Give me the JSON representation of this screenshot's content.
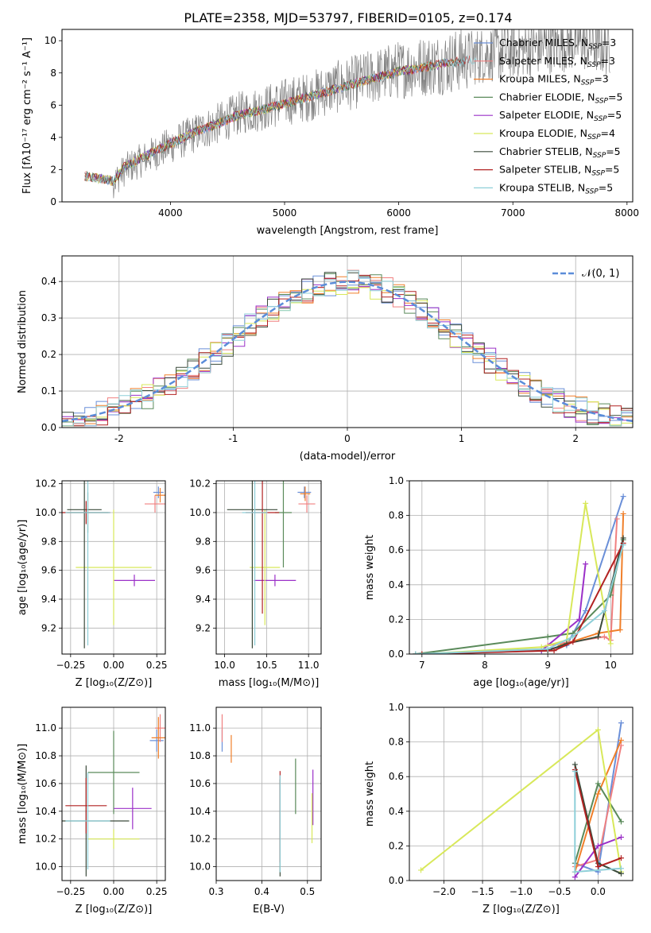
{
  "figure_title": "PLATE=2358, MJD=53797, FIBERID=0105, z=0.174",
  "legend_models": [
    {
      "name": "Chabrier MILES, N",
      "sub": "SSP",
      "val": "=3",
      "color": "#6a8fd8"
    },
    {
      "name": "Salpeter MILES, N",
      "sub": "SSP",
      "val": "=3",
      "color": "#f08080"
    },
    {
      "name": "Kroupa MILES, N",
      "sub": "SSP",
      "val": "=3",
      "color": "#f07f2a"
    },
    {
      "name": "Chabrier ELODIE, N",
      "sub": "SSP",
      "val": "=5",
      "color": "#5a8a5a"
    },
    {
      "name": "Salpeter ELODIE, N",
      "sub": "SSP",
      "val": "=5",
      "color": "#9b30c8"
    },
    {
      "name": "Kroupa ELODIE, N",
      "sub": "SSP",
      "val": "=4",
      "color": "#d8e85a"
    },
    {
      "name": "Chabrier STELIB, N",
      "sub": "SSP",
      "val": "=5",
      "color": "#3a4a3a"
    },
    {
      "name": "Salpeter STELIB, N",
      "sub": "SSP",
      "val": "=5",
      "color": "#b22222"
    },
    {
      "name": "Kroupa STELIB, N",
      "sub": "SSP",
      "val": "=5",
      "color": "#8ecfd8"
    }
  ],
  "chart_data": [
    {
      "id": "spectrum",
      "type": "line",
      "xlabel": "wavelength [Angstrom, rest frame]",
      "ylabel": "Flux [fλ10⁻¹⁷ erg cm⁻² s⁻¹ A⁻¹]",
      "xlim": [
        3050,
        8050
      ],
      "ylim": [
        0,
        10.7
      ],
      "xticks": [
        4000,
        5000,
        6000,
        7000,
        8000
      ],
      "yticks": [
        0,
        2,
        4,
        6,
        8,
        10
      ],
      "data_color": "#808080",
      "data_knots": [
        [
          3250,
          1.6
        ],
        [
          3400,
          1.6
        ],
        [
          3500,
          1.2
        ],
        [
          3600,
          2.0
        ],
        [
          3800,
          2.8
        ],
        [
          4000,
          3.5
        ],
        [
          4200,
          4.2
        ],
        [
          4400,
          4.8
        ],
        [
          4600,
          5.5
        ],
        [
          4800,
          5.8
        ],
        [
          5000,
          6.2
        ],
        [
          5200,
          6.5
        ],
        [
          5400,
          7.0
        ],
        [
          5600,
          7.4
        ],
        [
          5800,
          7.8
        ],
        [
          6000,
          8.2
        ],
        [
          6200,
          8.4
        ],
        [
          6400,
          8.6
        ],
        [
          6600,
          8.9
        ],
        [
          6800,
          9.2
        ],
        [
          7000,
          9.4
        ],
        [
          7200,
          9.6
        ],
        [
          7400,
          9.8
        ],
        [
          7600,
          9.9
        ],
        [
          7800,
          9.6
        ]
      ],
      "model_knots": [
        [
          3250,
          1.6
        ],
        [
          3500,
          1.3
        ],
        [
          3600,
          2.2
        ],
        [
          3800,
          2.9
        ],
        [
          4000,
          3.6
        ],
        [
          4200,
          4.3
        ],
        [
          4400,
          4.8
        ],
        [
          4600,
          5.4
        ],
        [
          4800,
          5.7
        ],
        [
          5000,
          6.1
        ],
        [
          5200,
          6.5
        ],
        [
          5400,
          6.9
        ],
        [
          5600,
          7.3
        ],
        [
          5800,
          7.7
        ],
        [
          6000,
          8.1
        ],
        [
          6200,
          8.3
        ],
        [
          6400,
          8.6
        ],
        [
          6600,
          8.8
        ]
      ]
    },
    {
      "id": "residuals",
      "type": "step-histogram",
      "xlabel": "(data-model)/error",
      "ylabel": "Normed distribution",
      "xlim": [
        -2.5,
        2.5
      ],
      "ylim": [
        0,
        0.47
      ],
      "xticks": [
        -2,
        -1,
        0,
        1,
        2
      ],
      "yticks": [
        0.0,
        0.1,
        0.2,
        0.3,
        0.4
      ],
      "grid": true,
      "bin_width": 0.1,
      "reference_curve": {
        "label": "𝒩(0, 1)",
        "color": "#5b8dd9"
      }
    },
    {
      "id": "age_vs_Z",
      "type": "errorbar",
      "xlabel": "Z [log₁₀(Z/Z⊙)]",
      "ylabel": "age  [log₁₀(age/yr)]",
      "xlim": [
        -0.3,
        0.3
      ],
      "ylim": [
        9.02,
        10.22
      ],
      "xticks": [
        -0.25,
        0.0,
        0.25
      ],
      "ytick_values": [
        9.2,
        9.4,
        9.6,
        9.8,
        10.0,
        10.2
      ],
      "xtick_labels": [
        "−0.25",
        "0.00",
        "0.25"
      ],
      "ytick_labels": [
        "9.2",
        "9.4",
        "9.6",
        "9.8",
        "10.0",
        "10.2"
      ],
      "grid": true,
      "points": [
        {
          "x": 0.26,
          "y": 10.14,
          "xe": 0.03,
          "ye": 0.04,
          "c": 0
        },
        {
          "x": 0.24,
          "y": 10.06,
          "xe": 0.06,
          "ye": 0.06,
          "c": 1
        },
        {
          "x": 0.27,
          "y": 10.12,
          "xe": 0.03,
          "ye": 0.05,
          "c": 2
        },
        {
          "x": -0.15,
          "y": 10.0,
          "xe": 0.12,
          "ye": 0.14,
          "c": 3
        },
        {
          "x": 0.12,
          "y": 9.53,
          "xe": 0.12,
          "ye": 0.04,
          "c": 4
        },
        {
          "x": 0.0,
          "y": 9.62,
          "xe": 0.22,
          "ye": 0.4,
          "c": 5
        },
        {
          "x": -0.17,
          "y": 10.02,
          "xe": 0.1,
          "ye": 0.96,
          "c": 6
        },
        {
          "x": -0.16,
          "y": 10.0,
          "xe": 0.14,
          "ye": 0.08,
          "c": 7
        },
        {
          "x": -0.15,
          "y": 10.0,
          "xe": 0.13,
          "ye": 0.92,
          "c": 8
        }
      ]
    },
    {
      "id": "age_vs_mass",
      "type": "errorbar",
      "xlabel": "mass [log₁₀(M/M⊙)]",
      "ylabel": "",
      "xlim": [
        9.9,
        11.15
      ],
      "ylim": [
        9.02,
        10.22
      ],
      "xticks": [
        10.0,
        10.5,
        11.0
      ],
      "ytick_values": [
        9.2,
        9.4,
        9.6,
        9.8,
        10.0,
        10.2
      ],
      "xtick_labels": [
        "10.0",
        "10.5",
        "11.0"
      ],
      "ytick_labels": [
        "9.2",
        "9.4",
        "9.6",
        "9.8",
        "10.0",
        "10.2"
      ],
      "grid": true,
      "points": [
        {
          "x": 10.95,
          "y": 10.14,
          "xe": 0.08,
          "ye": 0.04,
          "c": 0
        },
        {
          "x": 10.98,
          "y": 10.06,
          "xe": 0.1,
          "ye": 0.06,
          "c": 1
        },
        {
          "x": 10.96,
          "y": 10.13,
          "xe": 0.06,
          "ye": 0.05,
          "c": 2
        },
        {
          "x": 10.7,
          "y": 10.0,
          "xe": 0.1,
          "ye": 0.38,
          "c": 3
        },
        {
          "x": 10.6,
          "y": 9.53,
          "xe": 0.25,
          "ye": 0.04,
          "c": 4
        },
        {
          "x": 10.48,
          "y": 9.62,
          "xe": 0.18,
          "ye": 0.4,
          "c": 5
        },
        {
          "x": 10.33,
          "y": 10.02,
          "xe": 0.3,
          "ye": 0.96,
          "c": 6
        },
        {
          "x": 10.45,
          "y": 10.0,
          "xe": 0.2,
          "ye": 0.7,
          "c": 7
        },
        {
          "x": 10.36,
          "y": 10.0,
          "xe": 0.15,
          "ye": 0.92,
          "c": 8
        }
      ]
    },
    {
      "id": "weight_vs_age",
      "type": "line",
      "xlabel": "age  [log₁₀(age/yr)]",
      "ylabel": "mass weight",
      "xlim": [
        6.8,
        10.35
      ],
      "ylim": [
        0,
        1
      ],
      "xticks": [
        7,
        8,
        9,
        10
      ],
      "yticks": [
        0.0,
        0.2,
        0.4,
        0.6,
        0.8,
        1.0
      ],
      "xtick_labels": [
        "7",
        "8",
        "9",
        "10"
      ],
      "ytick_labels": [
        "0.0",
        "0.2",
        "0.4",
        "0.6",
        "0.8",
        "1.0"
      ],
      "grid": true,
      "series": [
        {
          "c": 0,
          "x": [
            8.9,
            9.3,
            9.6,
            10.2
          ],
          "y": [
            0.02,
            0.05,
            0.25,
            0.91
          ]
        },
        {
          "c": 1,
          "x": [
            9.0,
            9.9,
            10.0,
            10.1
          ],
          "y": [
            0.05,
            0.1,
            0.08,
            0.78
          ]
        },
        {
          "c": 2,
          "x": [
            9.2,
            9.8,
            10.15,
            10.2
          ],
          "y": [
            0.05,
            0.12,
            0.14,
            0.81
          ]
        },
        {
          "c": 3,
          "x": [
            6.9,
            9.0,
            9.4,
            10.0,
            10.2
          ],
          "y": [
            0.0,
            0.1,
            0.12,
            0.34,
            0.66
          ]
        },
        {
          "c": 4,
          "x": [
            7.0,
            8.9,
            9.5,
            9.6
          ],
          "y": [
            0.0,
            0.02,
            0.2,
            0.52
          ]
        },
        {
          "c": 5,
          "x": [
            7.0,
            8.9,
            9.3,
            9.6,
            10.0
          ],
          "y": [
            0.0,
            0.04,
            0.08,
            0.87,
            0.06
          ]
        },
        {
          "c": 6,
          "x": [
            6.9,
            9.0,
            9.3,
            9.8,
            10.2
          ],
          "y": [
            0.0,
            0.02,
            0.06,
            0.1,
            0.67
          ]
        },
        {
          "c": 7,
          "x": [
            7.0,
            9.1,
            9.4,
            10.2
          ],
          "y": [
            0.0,
            0.02,
            0.07,
            0.64
          ]
        },
        {
          "c": 8,
          "x": [
            6.9,
            9.0,
            9.4,
            9.9,
            10.2
          ],
          "y": [
            0.0,
            0.03,
            0.1,
            0.25,
            0.63
          ]
        }
      ]
    },
    {
      "id": "mass_vs_Z",
      "type": "errorbar",
      "xlabel": "Z [log₁₀(Z/Z⊙)]",
      "ylabel": "mass [log₁₀(M/M⊙)]",
      "xlim": [
        -0.3,
        0.3
      ],
      "ylim": [
        9.9,
        11.15
      ],
      "xticks": [
        -0.25,
        0.0,
        0.25
      ],
      "ytick_values": [
        10.0,
        10.2,
        10.4,
        10.6,
        10.8,
        11.0
      ],
      "xtick_labels": [
        "−0.25",
        "0.00",
        "0.25"
      ],
      "ytick_labels": [
        "10.0",
        "10.2",
        "10.4",
        "10.6",
        "10.8",
        "11.0"
      ],
      "grid": true,
      "points": [
        {
          "x": 0.25,
          "y": 10.91,
          "xe": 0.04,
          "ye": 0.08,
          "c": 0
        },
        {
          "x": 0.27,
          "y": 11.0,
          "xe": 0.03,
          "ye": 0.1,
          "c": 1
        },
        {
          "x": 0.26,
          "y": 10.93,
          "xe": 0.04,
          "ye": 0.15,
          "c": 2
        },
        {
          "x": 0.0,
          "y": 10.68,
          "xe": 0.15,
          "ye": 0.3,
          "c": 3
        },
        {
          "x": 0.11,
          "y": 10.42,
          "xe": 0.11,
          "ye": 0.15,
          "c": 4
        },
        {
          "x": 0.0,
          "y": 10.2,
          "xe": 0.15,
          "ye": 0.07,
          "c": 5
        },
        {
          "x": -0.16,
          "y": 10.33,
          "xe": 0.25,
          "ye": 0.4,
          "c": 6
        },
        {
          "x": -0.16,
          "y": 10.44,
          "xe": 0.12,
          "ye": 0.2,
          "c": 7
        },
        {
          "x": -0.15,
          "y": 10.33,
          "xe": 0.13,
          "ye": 0.35,
          "c": 8
        }
      ]
    },
    {
      "id": "mass_vs_EBV",
      "type": "errorbar",
      "xlabel": "E(B-V)",
      "ylabel": "",
      "xlim": [
        0.3,
        0.53
      ],
      "ylim": [
        9.9,
        11.15
      ],
      "xticks": [
        0.3,
        0.4,
        0.5
      ],
      "ytick_values": [
        10.0,
        10.2,
        10.4,
        10.6,
        10.8,
        11.0
      ],
      "xtick_labels": [
        "0.3",
        "0.4",
        "0.5"
      ],
      "ytick_labels": [
        "10.0",
        "10.2",
        "10.4",
        "10.6",
        "10.8",
        "11.0"
      ],
      "grid": true,
      "points": [
        {
          "x": 0.313,
          "y": 10.91,
          "xe": 0.0,
          "ye": 0.08,
          "c": 0
        },
        {
          "x": 0.313,
          "y": 11.0,
          "xe": 0.0,
          "ye": 0.1,
          "c": 1
        },
        {
          "x": 0.333,
          "y": 10.85,
          "xe": 0.0,
          "ye": 0.1,
          "c": 2
        },
        {
          "x": 0.474,
          "y": 10.58,
          "xe": 0.0,
          "ye": 0.2,
          "c": 3
        },
        {
          "x": 0.512,
          "y": 10.5,
          "xe": 0.0,
          "ye": 0.2,
          "c": 4
        },
        {
          "x": 0.51,
          "y": 10.35,
          "xe": 0.0,
          "ye": 0.18,
          "c": 5
        },
        {
          "x": 0.44,
          "y": 10.28,
          "xe": 0.0,
          "ye": 0.35,
          "c": 6
        },
        {
          "x": 0.44,
          "y": 10.36,
          "xe": 0.0,
          "ye": 0.33,
          "c": 7
        },
        {
          "x": 0.44,
          "y": 10.31,
          "xe": 0.0,
          "ye": 0.35,
          "c": 8
        }
      ]
    },
    {
      "id": "weight_vs_Z",
      "type": "line",
      "xlabel": "Z [log₁₀(Z/Z⊙)]",
      "ylabel": "mass weight",
      "xlim": [
        -2.45,
        0.45
      ],
      "ylim": [
        0,
        1
      ],
      "xticks": [
        -2.0,
        -1.5,
        -1.0,
        -0.5,
        0.0
      ],
      "yticks": [
        0.0,
        0.2,
        0.4,
        0.6,
        0.8,
        1.0
      ],
      "xtick_labels": [
        "−2.0",
        "−1.5",
        "−1.0",
        "−0.5",
        "0.0"
      ],
      "ytick_labels": [
        "0.0",
        "0.2",
        "0.4",
        "0.6",
        "0.8",
        "1.0"
      ],
      "grid": true,
      "series": [
        {
          "c": 0,
          "x": [
            -0.3,
            0.0,
            0.3
          ],
          "y": [
            0.1,
            0.05,
            0.91
          ]
        },
        {
          "c": 1,
          "x": [
            -0.3,
            0.0,
            0.3
          ],
          "y": [
            0.08,
            0.12,
            0.78
          ]
        },
        {
          "c": 2,
          "x": [
            -0.3,
            0.0,
            0.3
          ],
          "y": [
            0.05,
            0.5,
            0.81
          ]
        },
        {
          "c": 3,
          "x": [
            -0.3,
            0.0,
            0.3
          ],
          "y": [
            0.1,
            0.56,
            0.34
          ]
        },
        {
          "c": 4,
          "x": [
            -0.3,
            0.0,
            0.3
          ],
          "y": [
            0.02,
            0.2,
            0.25
          ]
        },
        {
          "c": 5,
          "x": [
            -2.3,
            0.0,
            0.3
          ],
          "y": [
            0.06,
            0.87,
            0.05
          ]
        },
        {
          "c": 6,
          "x": [
            -0.3,
            0.0,
            0.3
          ],
          "y": [
            0.67,
            0.1,
            0.04
          ]
        },
        {
          "c": 7,
          "x": [
            -0.3,
            0.0,
            0.3
          ],
          "y": [
            0.64,
            0.08,
            0.13
          ]
        },
        {
          "c": 8,
          "x": [
            -0.3,
            -0.3,
            0.3
          ],
          "y": [
            0.63,
            0.05,
            0.07
          ]
        }
      ]
    }
  ]
}
